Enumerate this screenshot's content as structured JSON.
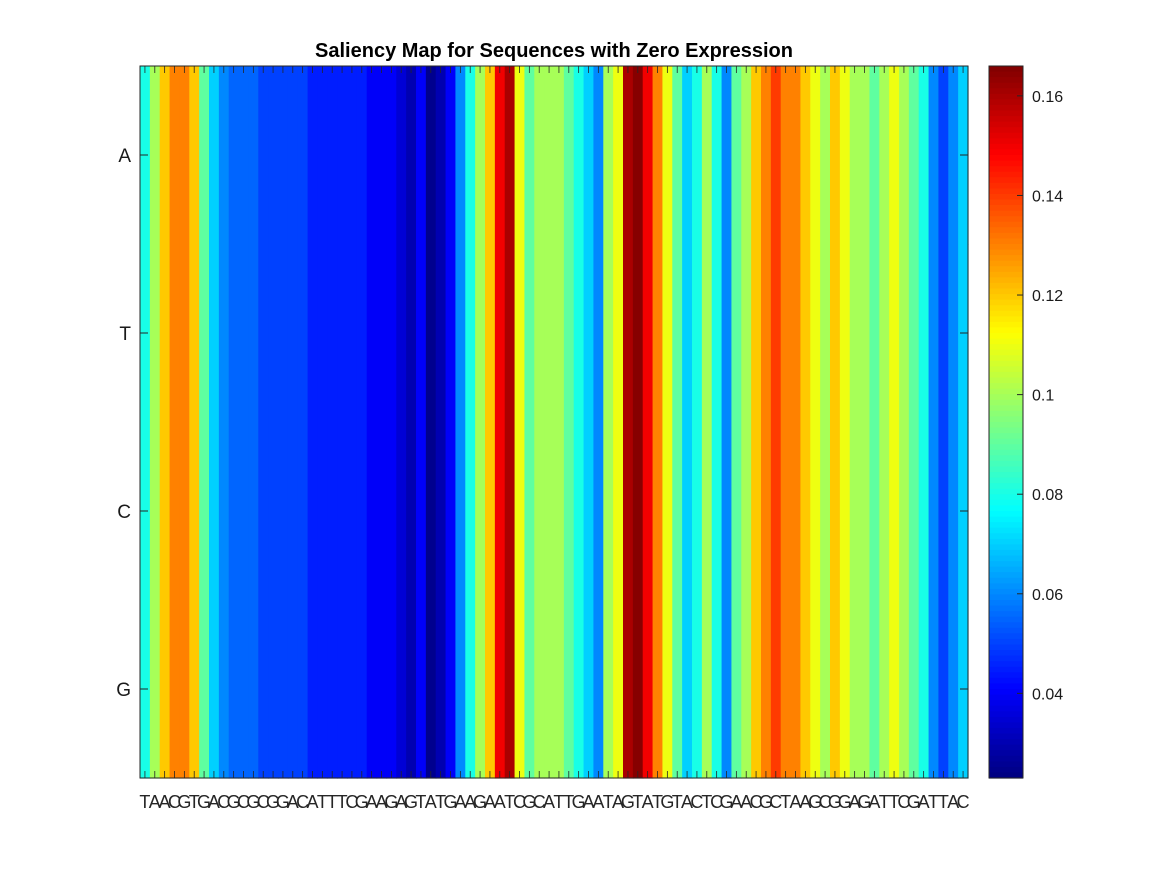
{
  "chart_data": {
    "type": "heatmap",
    "title": "Saliency Map for Sequences with Zero Expression",
    "xlabel": "",
    "ylabel": "",
    "rows": [
      "A",
      "T",
      "C",
      "G"
    ],
    "x_tick_labels": [
      "T",
      "A",
      "A",
      "C",
      "G",
      "T",
      "G",
      "A",
      "C",
      "G",
      "C",
      "G",
      "C",
      "G",
      "G",
      "A",
      "C",
      "A",
      "T",
      "T",
      "T",
      "C",
      "G",
      "A",
      "A",
      "G",
      "A",
      "G",
      "T",
      "A",
      "T",
      "G",
      "A",
      "A",
      "G",
      "A",
      "A",
      "T",
      "C",
      "G",
      "C",
      "A",
      "T",
      "T",
      "G",
      "A",
      "A",
      "T",
      "A",
      "G",
      "T",
      "A",
      "T",
      "G",
      "T",
      "A",
      "C",
      "T",
      "C",
      "G",
      "A",
      "A",
      "C",
      "G",
      "C",
      "T",
      "A",
      "A",
      "G",
      "C",
      "G",
      "G",
      "A",
      "G",
      "A",
      "T",
      "T",
      "C",
      "G",
      "A",
      "T",
      "T",
      "A",
      "C"
    ],
    "column_values": [
      0.08,
      0.1,
      0.12,
      0.13,
      0.13,
      0.12,
      0.09,
      0.07,
      0.06,
      0.055,
      0.055,
      0.055,
      0.05,
      0.05,
      0.05,
      0.05,
      0.05,
      0.045,
      0.045,
      0.045,
      0.045,
      0.045,
      0.045,
      0.04,
      0.04,
      0.04,
      0.035,
      0.03,
      0.04,
      0.025,
      0.03,
      0.04,
      0.06,
      0.08,
      0.1,
      0.12,
      0.15,
      0.16,
      0.11,
      0.09,
      0.1,
      0.1,
      0.1,
      0.09,
      0.08,
      0.07,
      0.06,
      0.1,
      0.11,
      0.16,
      0.165,
      0.15,
      0.13,
      0.11,
      0.09,
      0.07,
      0.08,
      0.1,
      0.08,
      0.06,
      0.09,
      0.1,
      0.12,
      0.13,
      0.14,
      0.13,
      0.13,
      0.12,
      0.11,
      0.1,
      0.12,
      0.11,
      0.1,
      0.1,
      0.09,
      0.1,
      0.11,
      0.1,
      0.09,
      0.08,
      0.06,
      0.05,
      0.06,
      0.07
    ],
    "value_range": [
      0.023,
      0.166
    ],
    "colormap": "jet",
    "colorbar_ticks": [
      0.04,
      0.06,
      0.08,
      0.1,
      0.12,
      0.14,
      0.16
    ],
    "colorbar_tick_labels": [
      "0.04",
      "0.06",
      "0.08",
      "0.1",
      "0.12",
      "0.14",
      "0.16"
    ],
    "grid": false,
    "legend": "none",
    "colorbar_position": "right"
  }
}
